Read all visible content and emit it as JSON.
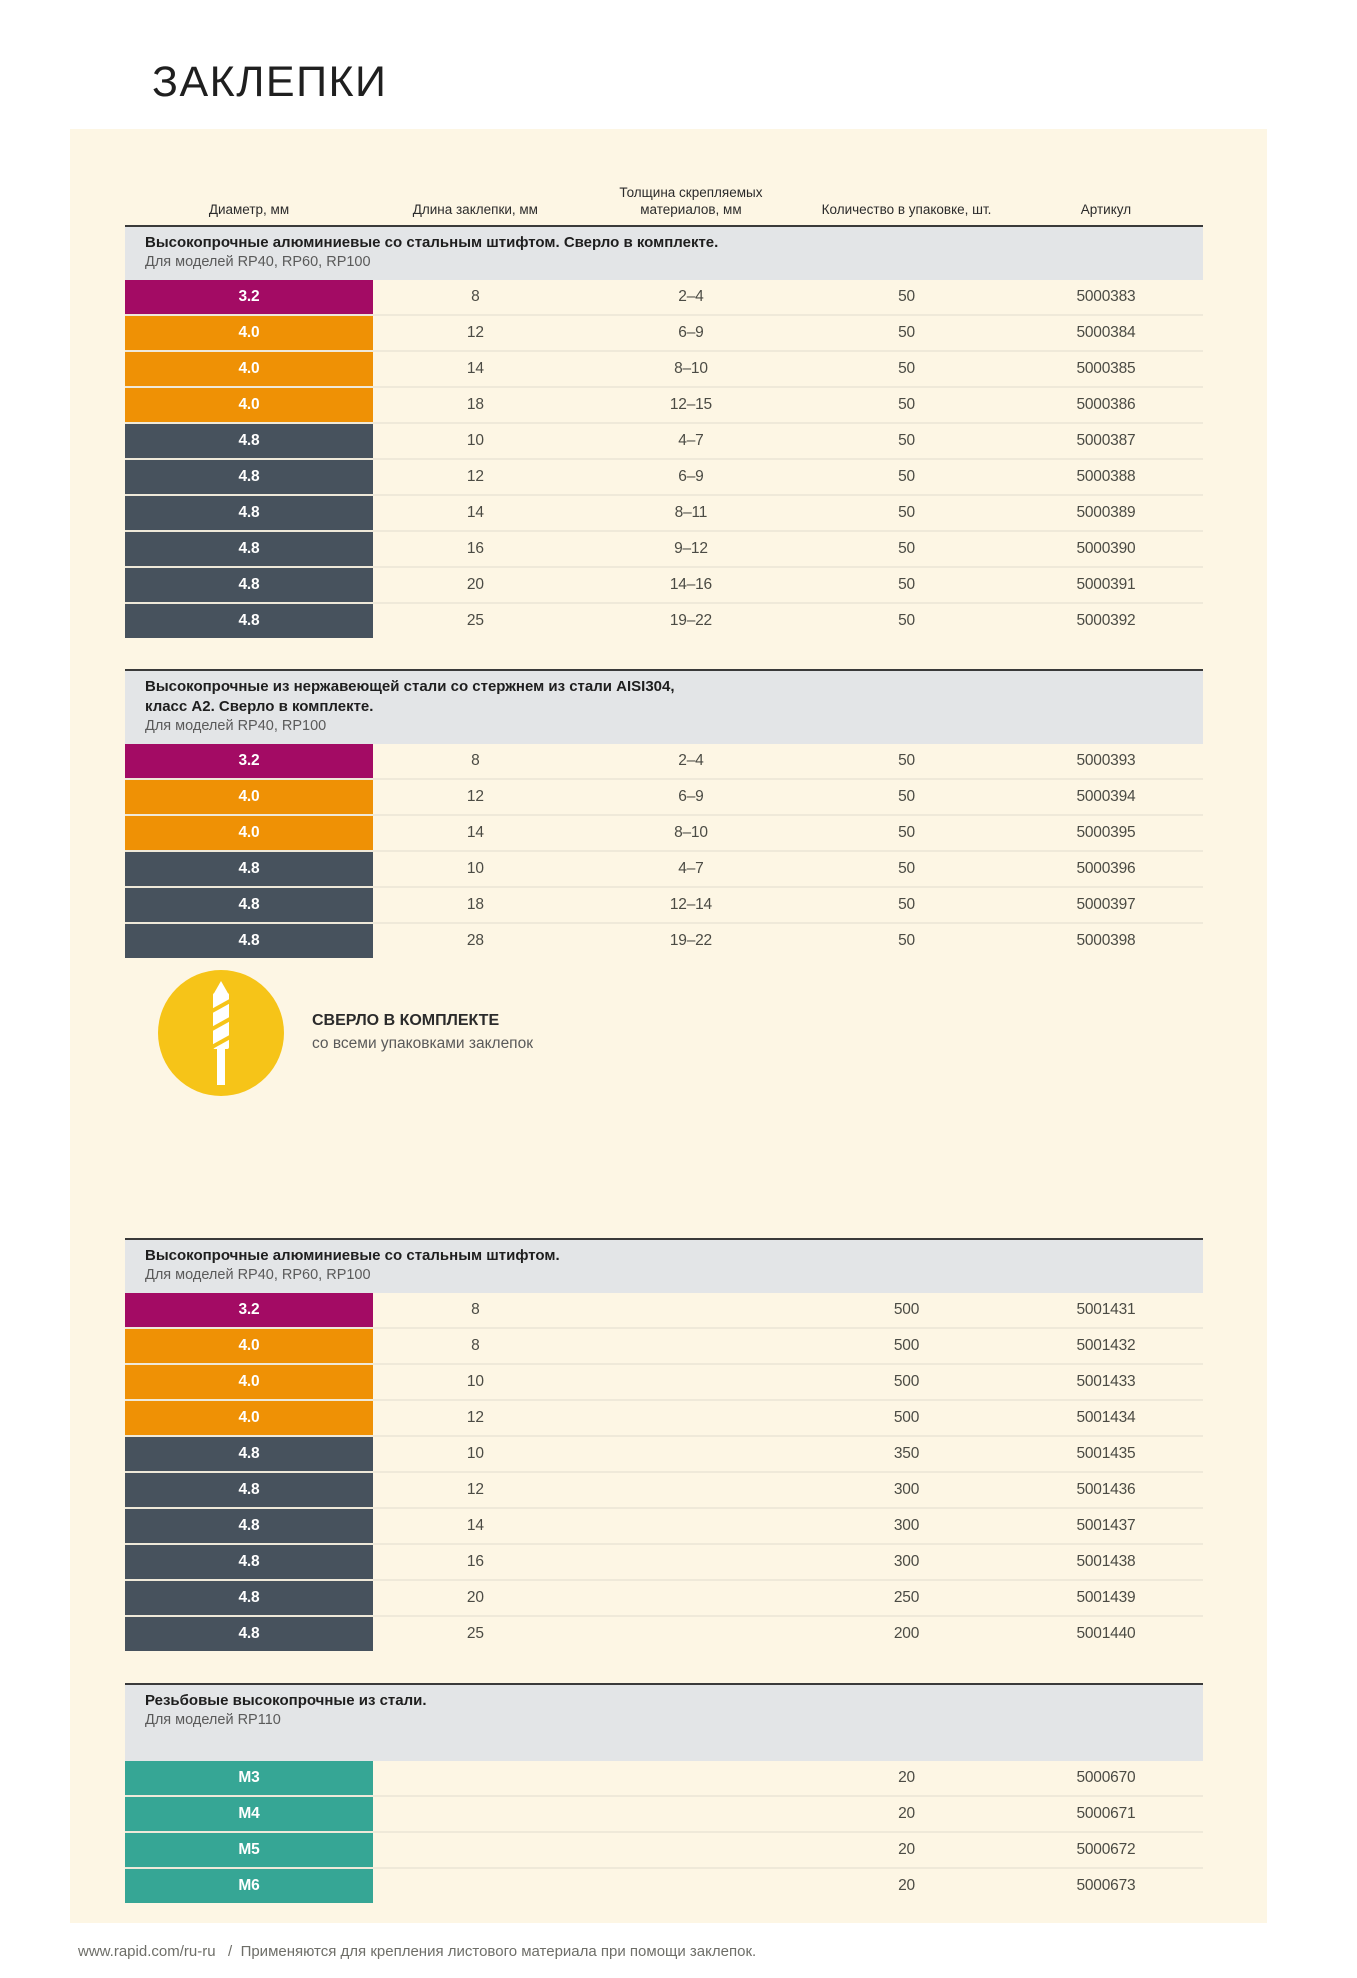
{
  "page": {
    "title": "ЗАКЛЕПКИ"
  },
  "colors": {
    "magenta": "#a30b64",
    "orange": "#ef9105",
    "slate": "#47525d",
    "teal": "#36a695",
    "yellow": "#f6c418",
    "band_gray": "#e3e5e7",
    "panel_cream": "#fdf6e4"
  },
  "table": {
    "headers": [
      "Диаметр, мм",
      "Длина заклепки, мм",
      "Толщина скрепляемых материалов, мм",
      "Количество в упаковке, шт.",
      "Артикул"
    ],
    "sections": [
      {
        "title": "Высокопрочные алюминиевые со стальным штифтом. Сверло в комплекте.",
        "subtitle": "Для моделей RP40, RP60, RP100",
        "rows": [
          {
            "diameter": "3.2",
            "color": "magenta",
            "length": "8",
            "thickness": "2–4",
            "qty": "50",
            "article": "5000383"
          },
          {
            "diameter": "4.0",
            "color": "orange",
            "length": "12",
            "thickness": "6–9",
            "qty": "50",
            "article": "5000384"
          },
          {
            "diameter": "4.0",
            "color": "orange",
            "length": "14",
            "thickness": "8–10",
            "qty": "50",
            "article": "5000385"
          },
          {
            "diameter": "4.0",
            "color": "orange",
            "length": "18",
            "thickness": "12–15",
            "qty": "50",
            "article": "5000386"
          },
          {
            "diameter": "4.8",
            "color": "slate",
            "length": "10",
            "thickness": "4–7",
            "qty": "50",
            "article": "5000387"
          },
          {
            "diameter": "4.8",
            "color": "slate",
            "length": "12",
            "thickness": "6–9",
            "qty": "50",
            "article": "5000388"
          },
          {
            "diameter": "4.8",
            "color": "slate",
            "length": "14",
            "thickness": "8–11",
            "qty": "50",
            "article": "5000389"
          },
          {
            "diameter": "4.8",
            "color": "slate",
            "length": "16",
            "thickness": "9–12",
            "qty": "50",
            "article": "5000390"
          },
          {
            "diameter": "4.8",
            "color": "slate",
            "length": "20",
            "thickness": "14–16",
            "qty": "50",
            "article": "5000391"
          },
          {
            "diameter": "4.8",
            "color": "slate",
            "length": "25",
            "thickness": "19–22",
            "qty": "50",
            "article": "5000392"
          }
        ]
      },
      {
        "title": "Высокопрочные из нержавеющей стали со стержнем из стали AISI304,\nкласс А2. Сверло в комплекте.",
        "subtitle": "Для моделей RP40, RP100",
        "rows": [
          {
            "diameter": "3.2",
            "color": "magenta",
            "length": "8",
            "thickness": "2–4",
            "qty": "50",
            "article": "5000393"
          },
          {
            "diameter": "4.0",
            "color": "orange",
            "length": "12",
            "thickness": "6–9",
            "qty": "50",
            "article": "5000394"
          },
          {
            "diameter": "4.0",
            "color": "orange",
            "length": "14",
            "thickness": "8–10",
            "qty": "50",
            "article": "5000395"
          },
          {
            "diameter": "4.8",
            "color": "slate",
            "length": "10",
            "thickness": "4–7",
            "qty": "50",
            "article": "5000396"
          },
          {
            "diameter": "4.8",
            "color": "slate",
            "length": "18",
            "thickness": "12–14",
            "qty": "50",
            "article": "5000397"
          },
          {
            "diameter": "4.8",
            "color": "slate",
            "length": "28",
            "thickness": "19–22",
            "qty": "50",
            "article": "5000398"
          }
        ]
      },
      {
        "title": "Высокопрочные алюминиевые со стальным штифтом.",
        "subtitle": "Для моделей RP40, RP60, RP100",
        "rows": [
          {
            "diameter": "3.2",
            "color": "magenta",
            "length": "8",
            "thickness": "",
            "qty": "500",
            "article": "5001431"
          },
          {
            "diameter": "4.0",
            "color": "orange",
            "length": "8",
            "thickness": "",
            "qty": "500",
            "article": "5001432"
          },
          {
            "diameter": "4.0",
            "color": "orange",
            "length": "10",
            "thickness": "",
            "qty": "500",
            "article": "5001433"
          },
          {
            "diameter": "4.0",
            "color": "orange",
            "length": "12",
            "thickness": "",
            "qty": "500",
            "article": "5001434"
          },
          {
            "diameter": "4.8",
            "color": "slate",
            "length": "10",
            "thickness": "",
            "qty": "350",
            "article": "5001435"
          },
          {
            "diameter": "4.8",
            "color": "slate",
            "length": "12",
            "thickness": "",
            "qty": "300",
            "article": "5001436"
          },
          {
            "diameter": "4.8",
            "color": "slate",
            "length": "14",
            "thickness": "",
            "qty": "300",
            "article": "5001437"
          },
          {
            "diameter": "4.8",
            "color": "slate",
            "length": "16",
            "thickness": "",
            "qty": "300",
            "article": "5001438"
          },
          {
            "diameter": "4.8",
            "color": "slate",
            "length": "20",
            "thickness": "",
            "qty": "250",
            "article": "5001439"
          },
          {
            "diameter": "4.8",
            "color": "slate",
            "length": "25",
            "thickness": "",
            "qty": "200",
            "article": "5001440"
          }
        ]
      },
      {
        "title": "Резьбовые высокопрочные из стали.",
        "subtitle": "Для моделей RP110",
        "tall_band": true,
        "rows": [
          {
            "diameter": "M3",
            "color": "teal",
            "length": "",
            "thickness": "",
            "qty": "20",
            "article": "5000670"
          },
          {
            "diameter": "M4",
            "color": "teal",
            "length": "",
            "thickness": "",
            "qty": "20",
            "article": "5000671"
          },
          {
            "diameter": "M5",
            "color": "teal",
            "length": "",
            "thickness": "",
            "qty": "20",
            "article": "5000672"
          },
          {
            "diameter": "M6",
            "color": "teal",
            "length": "",
            "thickness": "",
            "qty": "20",
            "article": "5000673"
          }
        ]
      }
    ]
  },
  "callout": {
    "title": "СВЕРЛО В КОМПЛЕКТЕ",
    "subtitle": "со всеми упаковками заклепок",
    "icon": "drill-bit-icon"
  },
  "footer": {
    "url": "www.rapid.com/ru-ru",
    "separator": "/",
    "text": "Применяются для крепления листового материала при помощи заклепок."
  }
}
